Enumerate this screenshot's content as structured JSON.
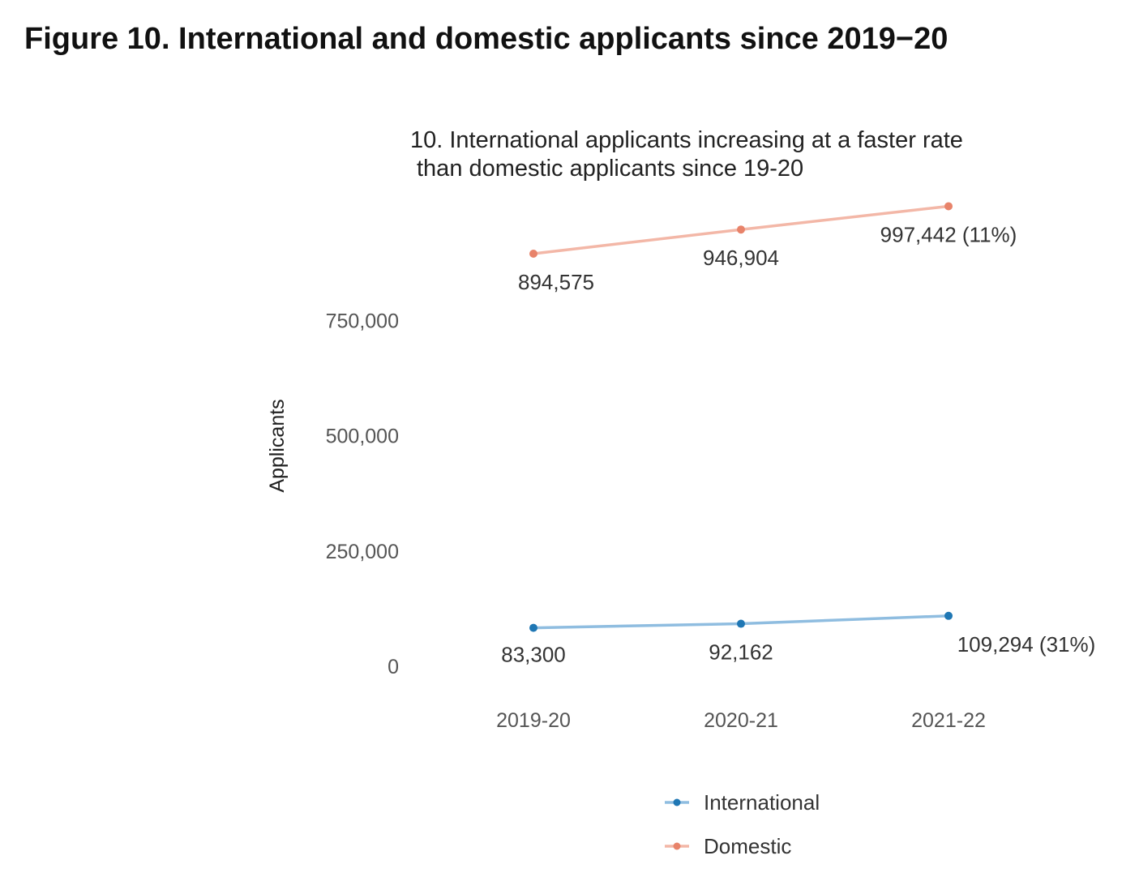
{
  "figure_title": "Figure 10. International and domestic applicants since 2019−20",
  "chart_data": {
    "type": "line",
    "title_lines": [
      "10. International applicants increasing at a faster rate",
      "than domestic applicants since 19-20"
    ],
    "xlabel": "",
    "ylabel": "Applicants",
    "categories": [
      "2019-20",
      "2020-21",
      "2021-22"
    ],
    "ylim": [
      0,
      1000000
    ],
    "yticks": [
      {
        "value": 0,
        "label": "0"
      },
      {
        "value": 250000,
        "label": "250,000"
      },
      {
        "value": 500000,
        "label": "500,000"
      },
      {
        "value": 750000,
        "label": "750,000"
      }
    ],
    "grid": false,
    "legend_position": "bottom",
    "series": [
      {
        "name": "International",
        "color": "#1f77b4",
        "line_color": "#8fbde0",
        "values": [
          83300,
          92162,
          109294
        ],
        "labels": [
          "83,300",
          "92,162",
          "109,294 (31%)"
        ]
      },
      {
        "name": "Domestic",
        "color": "#e8836a",
        "line_color": "#f3b7a7",
        "values": [
          894575,
          946904,
          997442
        ],
        "labels": [
          "894,575",
          "946,904",
          "997,442 (11%)"
        ]
      }
    ]
  }
}
